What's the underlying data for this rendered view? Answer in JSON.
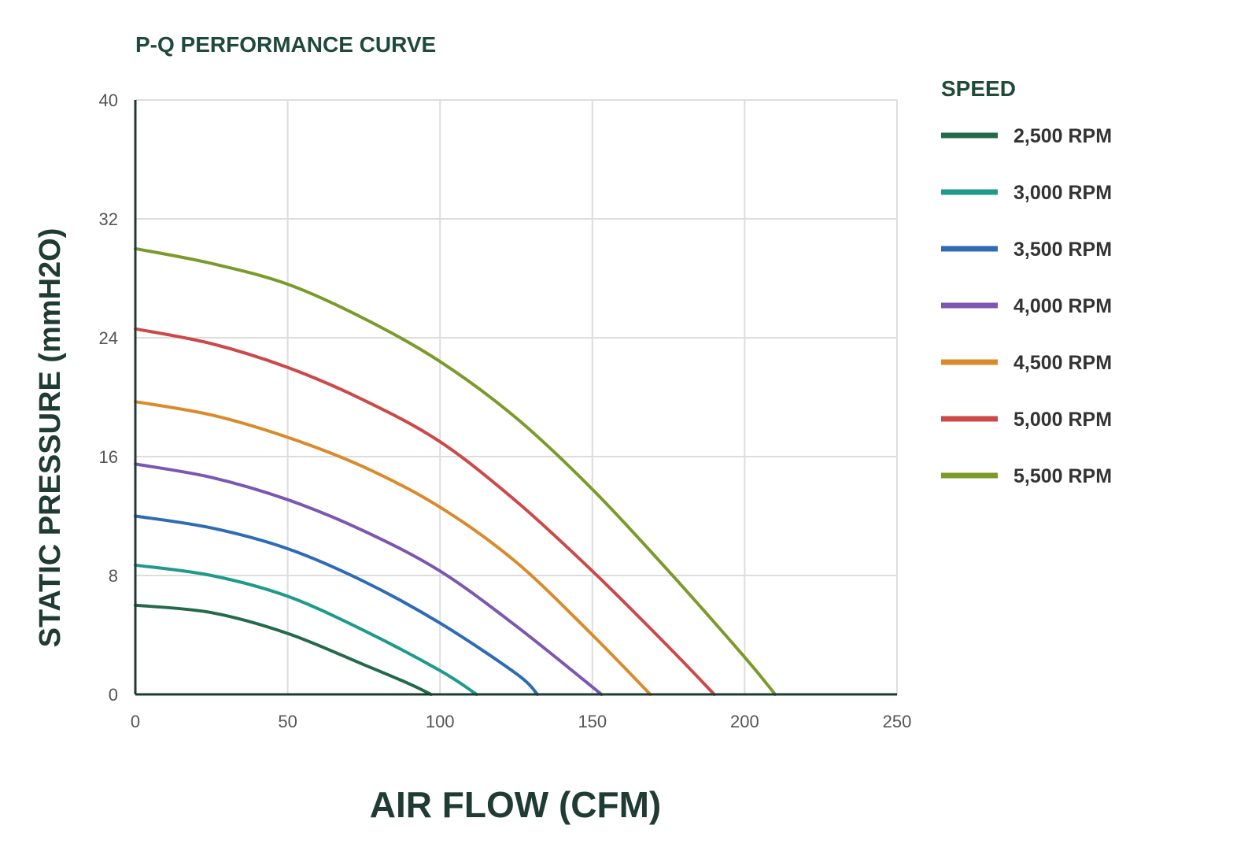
{
  "chart_data": {
    "type": "line",
    "title": "P-Q PERFORMANCE CURVE",
    "xlabel": "AIR FLOW (CFM)",
    "ylabel": "STATIC PRESSURE (mmH2O)",
    "xlim": [
      0,
      250
    ],
    "ylim": [
      0,
      40
    ],
    "x_ticks": [
      "0",
      "50",
      "100",
      "150",
      "200",
      "250"
    ],
    "y_ticks": [
      "0",
      "8",
      "16",
      "24",
      "32",
      "40"
    ],
    "grid": true,
    "legend_title": "SPEED",
    "legend_position": "right",
    "series": [
      {
        "name": "2,500 RPM",
        "color": "#23694a",
        "x": [
          0,
          25,
          50,
          75,
          90,
          97
        ],
        "y": [
          6.0,
          5.5,
          4.1,
          2.0,
          0.7,
          0
        ]
      },
      {
        "name": "3,000 RPM",
        "color": "#1f9a8a",
        "x": [
          0,
          25,
          50,
          75,
          100,
          112
        ],
        "y": [
          8.7,
          8.0,
          6.6,
          4.3,
          1.6,
          0
        ]
      },
      {
        "name": "3,500 RPM",
        "color": "#2e6bb5",
        "x": [
          0,
          25,
          50,
          75,
          100,
          125,
          132
        ],
        "y": [
          12.0,
          11.2,
          9.8,
          7.6,
          4.8,
          1.4,
          0
        ]
      },
      {
        "name": "4,000 RPM",
        "color": "#7b57b0",
        "x": [
          0,
          25,
          50,
          75,
          100,
          125,
          153
        ],
        "y": [
          15.5,
          14.6,
          13.1,
          11.0,
          8.3,
          4.6,
          0
        ]
      },
      {
        "name": "4,500 RPM",
        "color": "#d98b2b",
        "x": [
          0,
          25,
          50,
          75,
          100,
          125,
          150,
          169
        ],
        "y": [
          19.7,
          18.8,
          17.3,
          15.3,
          12.6,
          8.9,
          4.0,
          0
        ]
      },
      {
        "name": "5,000 RPM",
        "color": "#cc4949",
        "x": [
          0,
          25,
          50,
          75,
          100,
          125,
          150,
          175,
          190
        ],
        "y": [
          24.6,
          23.6,
          22.0,
          19.8,
          17.0,
          13.0,
          8.3,
          3.2,
          0
        ]
      },
      {
        "name": "5,500 RPM",
        "color": "#7a9b2c",
        "x": [
          0,
          25,
          50,
          75,
          100,
          125,
          150,
          175,
          200,
          210
        ],
        "y": [
          30.0,
          29.0,
          27.6,
          25.3,
          22.4,
          18.6,
          13.8,
          8.3,
          2.5,
          0
        ]
      }
    ]
  }
}
